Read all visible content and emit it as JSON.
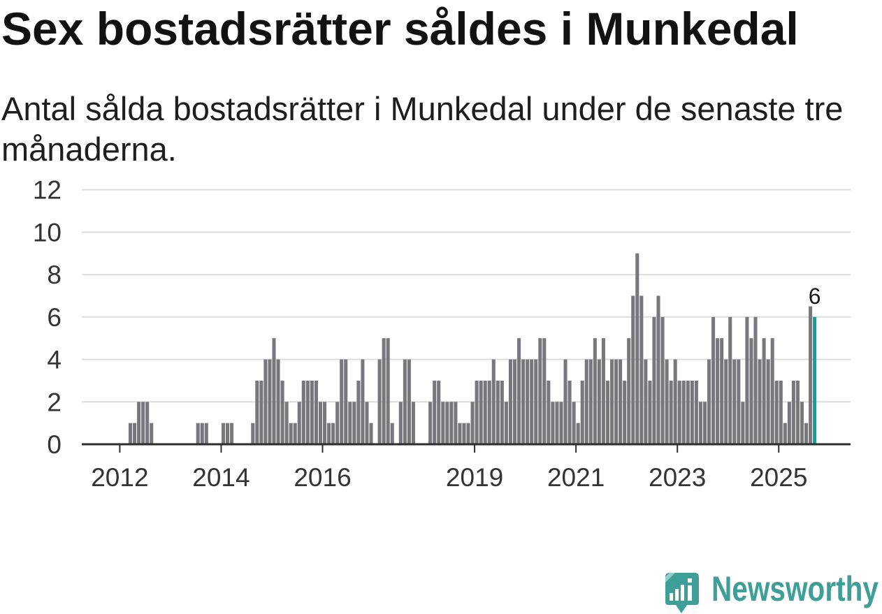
{
  "chart_data": {
    "type": "bar",
    "title": "Sex bostadsrätter såldes i Munkedal",
    "subtitle": "Antal sålda bostadsrätter i Munkedal under de senaste tre månaderna.",
    "x_start": {
      "year": 2012,
      "month": 1
    },
    "values": [
      0,
      0,
      1,
      1,
      2,
      2,
      2,
      1,
      0,
      0,
      0,
      0,
      0,
      0,
      0,
      0,
      0,
      0,
      1,
      1,
      1,
      0,
      0,
      0,
      1,
      1,
      1,
      0,
      0,
      0,
      0,
      1,
      3,
      3,
      4,
      4,
      5,
      4,
      3,
      2,
      1,
      1,
      2,
      3,
      3,
      3,
      3,
      2,
      2,
      1,
      1,
      2,
      4,
      4,
      2,
      2,
      3,
      4,
      2,
      1,
      0,
      4,
      5,
      5,
      1,
      0,
      2,
      4,
      4,
      2,
      0,
      0,
      0,
      2,
      3,
      3,
      2,
      2,
      2,
      2,
      1,
      1,
      1,
      2,
      3,
      3,
      3,
      3,
      4,
      3,
      3,
      2,
      4,
      4,
      5,
      4,
      4,
      4,
      4,
      5,
      5,
      3,
      2,
      2,
      2,
      4,
      3,
      2,
      1,
      3,
      4,
      4,
      5,
      4,
      5,
      3,
      4,
      4,
      4,
      3,
      5,
      7,
      9,
      7,
      4,
      3,
      6,
      7,
      6,
      4,
      3,
      4,
      3,
      3,
      3,
      3,
      3,
      2,
      2,
      4,
      6,
      5,
      5,
      4,
      6,
      4,
      4,
      2,
      6,
      5,
      6,
      4,
      5,
      4,
      5,
      3,
      3,
      1,
      2,
      3,
      3,
      2,
      1,
      6.5,
      6
    ],
    "highlight_last": true,
    "highlight_label": "6",
    "xlim": [
      {
        "year": 2011,
        "month": 4
      },
      {
        "year": 2026,
        "month": 6
      }
    ],
    "ylim": [
      0,
      12
    ],
    "yticks": [
      0,
      2,
      4,
      6,
      8,
      10,
      12
    ],
    "xticks": [
      {
        "label": "2012",
        "year": 2012
      },
      {
        "label": "2014",
        "year": 2014
      },
      {
        "label": "2016",
        "year": 2016
      },
      {
        "label": "2019",
        "year": 2019
      },
      {
        "label": "2021",
        "year": 2021
      },
      {
        "label": "2023",
        "year": 2023
      },
      {
        "label": "2025",
        "year": 2025
      }
    ],
    "grid": true,
    "colors": {
      "bar": "#77777c",
      "highlight": "#129e98"
    }
  },
  "branding": {
    "logo_icon": "newsworthy-logo-icon",
    "wordmark": "Newsworthy",
    "color": "#3d9f98"
  }
}
